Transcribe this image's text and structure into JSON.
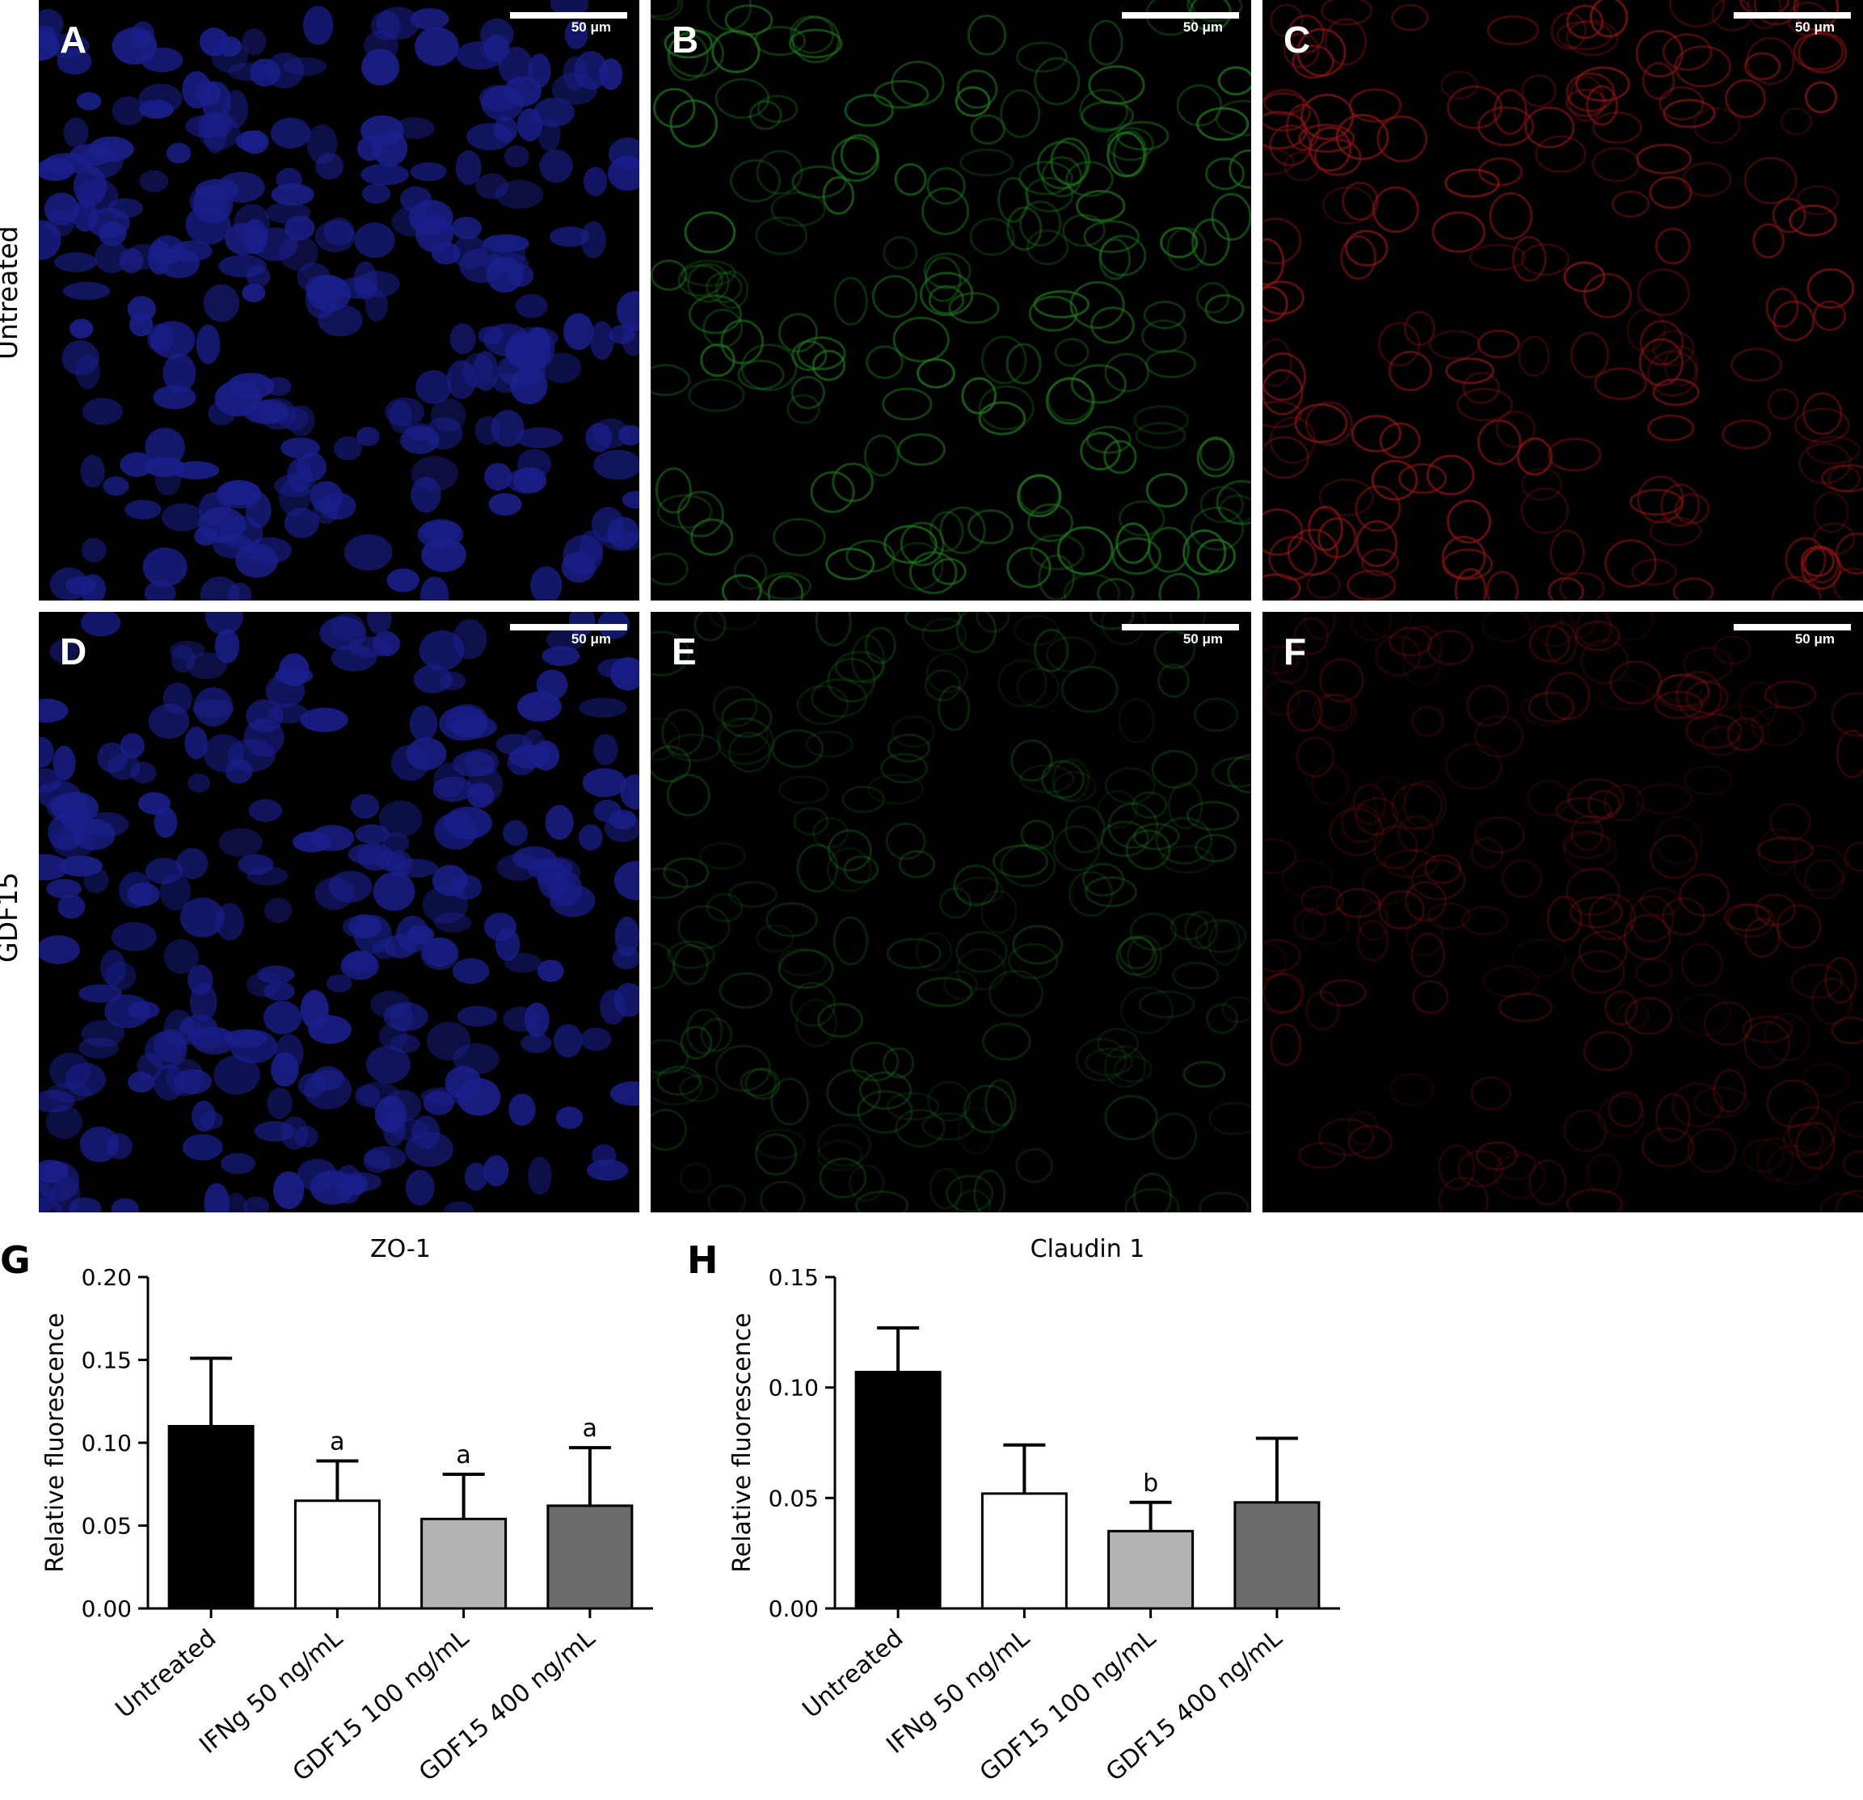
{
  "rows": [
    "Untreated",
    "GDF15"
  ],
  "panels": [
    {
      "letter": "A",
      "scale": "50 μm",
      "channel": "blue"
    },
    {
      "letter": "B",
      "scale": "50 μm",
      "channel": "green"
    },
    {
      "letter": "C",
      "scale": "50 μm",
      "channel": "red"
    },
    {
      "letter": "D",
      "scale": "50 μm",
      "channel": "blue"
    },
    {
      "letter": "E",
      "scale": "50 μm",
      "channel": "green"
    },
    {
      "letter": "F",
      "scale": "50 μm",
      "channel": "red"
    }
  ],
  "colors": {
    "blue": "#1a1f8c",
    "green": "#1f7a1f",
    "red": "#8a1414"
  },
  "chart_data": [
    {
      "panel": "G",
      "type": "bar",
      "title": "ZO-1",
      "ylabel": "Relative fluorescence",
      "categories": [
        "Untreated",
        "IFNg 50 ng/mL",
        "GDF15 100 ng/mL",
        "GDF15 400 ng/mL"
      ],
      "values": [
        0.11,
        0.065,
        0.054,
        0.062
      ],
      "errors": [
        0.041,
        0.024,
        0.027,
        0.035
      ],
      "annotations": [
        "",
        "a",
        "a",
        "a"
      ],
      "bar_colors": [
        "#000000",
        "#ffffff",
        "#b3b3b3",
        "#6b6b6b"
      ],
      "ylim": [
        0,
        0.2
      ],
      "yticks": [
        "0.00",
        "0.05",
        "0.10",
        "0.15",
        "0.20"
      ]
    },
    {
      "panel": "H",
      "type": "bar",
      "title": "Claudin 1",
      "ylabel": "Relative fluorescence",
      "categories": [
        "Untreated",
        "IFNg 50 ng/mL",
        "GDF15 100 ng/mL",
        "GDF15 400 ng/mL"
      ],
      "values": [
        0.107,
        0.052,
        0.035,
        0.048
      ],
      "errors": [
        0.02,
        0.022,
        0.013,
        0.029
      ],
      "annotations": [
        "",
        "",
        "b",
        ""
      ],
      "bar_colors": [
        "#000000",
        "#ffffff",
        "#b3b3b3",
        "#6b6b6b"
      ],
      "ylim": [
        0,
        0.15
      ],
      "yticks": [
        "0.00",
        "0.05",
        "0.10",
        "0.15"
      ]
    }
  ]
}
